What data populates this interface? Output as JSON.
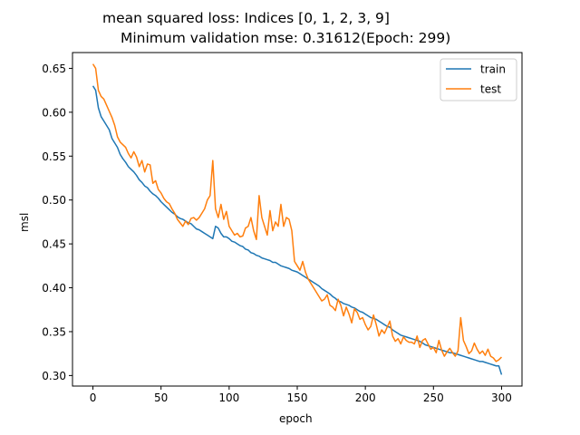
{
  "chart_data": {
    "type": "line",
    "title_line1": "mean squared loss: Indices [0, 1, 2, 3, 9]",
    "title_line2": "Minimum validation mse: 0.31612(Epoch: 299)",
    "xlabel": "epoch",
    "ylabel": "msl",
    "xlim": [
      -15,
      315
    ],
    "ylim": [
      0.288,
      0.668
    ],
    "xticks": [
      0,
      50,
      100,
      150,
      200,
      250,
      300
    ],
    "yticks": [
      0.3,
      0.35,
      0.4,
      0.45,
      0.5,
      0.55,
      0.6,
      0.65
    ],
    "legend_position": "top-right",
    "colors": {
      "train": "#1f77b4",
      "test": "#ff7f0e"
    },
    "series": [
      {
        "name": "train",
        "x": [
          0,
          2,
          4,
          6,
          8,
          10,
          12,
          14,
          16,
          18,
          20,
          22,
          24,
          26,
          28,
          30,
          32,
          34,
          36,
          38,
          40,
          42,
          44,
          46,
          48,
          50,
          52,
          54,
          56,
          58,
          60,
          62,
          64,
          66,
          68,
          70,
          72,
          74,
          76,
          78,
          80,
          82,
          84,
          86,
          88,
          90,
          92,
          94,
          96,
          98,
          100,
          102,
          104,
          106,
          108,
          110,
          112,
          114,
          116,
          118,
          120,
          122,
          124,
          126,
          128,
          130,
          132,
          134,
          136,
          138,
          140,
          142,
          144,
          146,
          148,
          150,
          152,
          154,
          156,
          158,
          160,
          162,
          164,
          166,
          168,
          170,
          172,
          174,
          176,
          178,
          180,
          182,
          184,
          186,
          188,
          190,
          192,
          194,
          196,
          198,
          200,
          202,
          204,
          206,
          208,
          210,
          212,
          214,
          216,
          218,
          220,
          222,
          224,
          226,
          228,
          230,
          232,
          234,
          236,
          238,
          240,
          242,
          244,
          246,
          248,
          250,
          252,
          254,
          256,
          258,
          260,
          262,
          264,
          266,
          268,
          270,
          272,
          274,
          276,
          278,
          280,
          282,
          284,
          286,
          288,
          290,
          292,
          294,
          296,
          298,
          300
        ],
        "values": [
          0.63,
          0.625,
          0.605,
          0.595,
          0.59,
          0.585,
          0.58,
          0.57,
          0.565,
          0.56,
          0.552,
          0.547,
          0.543,
          0.538,
          0.535,
          0.532,
          0.528,
          0.523,
          0.52,
          0.516,
          0.514,
          0.51,
          0.507,
          0.505,
          0.502,
          0.498,
          0.495,
          0.492,
          0.489,
          0.486,
          0.484,
          0.481,
          0.479,
          0.478,
          0.476,
          0.474,
          0.473,
          0.47,
          0.467,
          0.466,
          0.464,
          0.462,
          0.46,
          0.458,
          0.456,
          0.47,
          0.468,
          0.462,
          0.458,
          0.458,
          0.456,
          0.453,
          0.452,
          0.45,
          0.448,
          0.447,
          0.444,
          0.443,
          0.44,
          0.439,
          0.437,
          0.436,
          0.434,
          0.433,
          0.432,
          0.431,
          0.429,
          0.429,
          0.427,
          0.425,
          0.424,
          0.423,
          0.422,
          0.42,
          0.419,
          0.418,
          0.416,
          0.414,
          0.412,
          0.41,
          0.408,
          0.406,
          0.404,
          0.402,
          0.399,
          0.397,
          0.395,
          0.393,
          0.39,
          0.388,
          0.385,
          0.384,
          0.382,
          0.381,
          0.38,
          0.378,
          0.377,
          0.375,
          0.373,
          0.372,
          0.37,
          0.368,
          0.366,
          0.365,
          0.364,
          0.362,
          0.36,
          0.358,
          0.356,
          0.355,
          0.352,
          0.35,
          0.348,
          0.346,
          0.345,
          0.344,
          0.343,
          0.342,
          0.341,
          0.34,
          0.339,
          0.337,
          0.335,
          0.334,
          0.333,
          0.332,
          0.331,
          0.33,
          0.329,
          0.328,
          0.327,
          0.326,
          0.326,
          0.325,
          0.324,
          0.323,
          0.322,
          0.321,
          0.32,
          0.319,
          0.318,
          0.317,
          0.316,
          0.316,
          0.315,
          0.314,
          0.313,
          0.312,
          0.311,
          0.311,
          0.301
        ]
      },
      {
        "name": "test",
        "x": [
          0,
          2,
          4,
          6,
          8,
          10,
          12,
          14,
          16,
          18,
          20,
          22,
          24,
          26,
          28,
          30,
          32,
          34,
          36,
          38,
          40,
          42,
          44,
          46,
          48,
          50,
          52,
          54,
          56,
          58,
          60,
          62,
          64,
          66,
          68,
          70,
          72,
          74,
          76,
          78,
          80,
          82,
          84,
          86,
          88,
          90,
          92,
          94,
          96,
          98,
          100,
          102,
          104,
          106,
          108,
          110,
          112,
          114,
          116,
          118,
          120,
          122,
          124,
          126,
          128,
          130,
          132,
          134,
          136,
          138,
          140,
          142,
          144,
          146,
          148,
          150,
          152,
          154,
          156,
          158,
          160,
          162,
          164,
          166,
          168,
          170,
          172,
          174,
          176,
          178,
          180,
          182,
          184,
          186,
          188,
          190,
          192,
          194,
          196,
          198,
          200,
          202,
          204,
          206,
          208,
          210,
          212,
          214,
          216,
          218,
          220,
          222,
          224,
          226,
          228,
          230,
          232,
          234,
          236,
          238,
          240,
          242,
          244,
          246,
          248,
          250,
          252,
          254,
          256,
          258,
          260,
          262,
          264,
          266,
          268,
          270,
          272,
          274,
          276,
          278,
          280,
          282,
          284,
          286,
          288,
          290,
          292,
          294,
          296,
          298,
          300
        ],
        "values": [
          0.655,
          0.65,
          0.625,
          0.618,
          0.615,
          0.608,
          0.601,
          0.594,
          0.585,
          0.572,
          0.566,
          0.563,
          0.56,
          0.553,
          0.548,
          0.555,
          0.549,
          0.538,
          0.545,
          0.532,
          0.541,
          0.54,
          0.519,
          0.522,
          0.512,
          0.508,
          0.502,
          0.498,
          0.496,
          0.49,
          0.485,
          0.478,
          0.474,
          0.47,
          0.476,
          0.472,
          0.479,
          0.48,
          0.477,
          0.48,
          0.485,
          0.49,
          0.5,
          0.505,
          0.545,
          0.49,
          0.48,
          0.495,
          0.478,
          0.487,
          0.47,
          0.465,
          0.46,
          0.462,
          0.458,
          0.459,
          0.468,
          0.47,
          0.48,
          0.465,
          0.455,
          0.505,
          0.48,
          0.47,
          0.46,
          0.488,
          0.465,
          0.475,
          0.47,
          0.495,
          0.47,
          0.48,
          0.478,
          0.465,
          0.43,
          0.425,
          0.42,
          0.43,
          0.418,
          0.41,
          0.405,
          0.4,
          0.395,
          0.39,
          0.385,
          0.387,
          0.392,
          0.38,
          0.378,
          0.374,
          0.387,
          0.38,
          0.368,
          0.378,
          0.37,
          0.36,
          0.376,
          0.372,
          0.364,
          0.366,
          0.358,
          0.352,
          0.356,
          0.369,
          0.358,
          0.345,
          0.352,
          0.348,
          0.355,
          0.362,
          0.345,
          0.339,
          0.342,
          0.336,
          0.344,
          0.34,
          0.338,
          0.338,
          0.336,
          0.345,
          0.332,
          0.34,
          0.342,
          0.336,
          0.33,
          0.332,
          0.326,
          0.34,
          0.329,
          0.322,
          0.327,
          0.331,
          0.326,
          0.322,
          0.328,
          0.366,
          0.34,
          0.333,
          0.325,
          0.328,
          0.337,
          0.33,
          0.325,
          0.328,
          0.323,
          0.33,
          0.322,
          0.32,
          0.316,
          0.318,
          0.321
        ]
      }
    ]
  }
}
